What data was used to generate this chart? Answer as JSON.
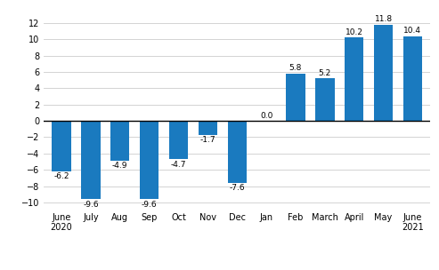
{
  "categories": [
    "June\n2020",
    "July",
    "Aug",
    "Sep",
    "Oct",
    "Nov",
    "Dec",
    "Jan",
    "Feb",
    "March",
    "April",
    "May",
    "June\n2021"
  ],
  "values": [
    -6.2,
    -9.6,
    -4.9,
    -9.6,
    -4.7,
    -1.7,
    -7.6,
    0.0,
    5.8,
    5.2,
    10.2,
    11.8,
    10.4
  ],
  "bar_color": "#1a7abf",
  "ylim": [
    -11,
    13.5
  ],
  "yticks": [
    -10,
    -8,
    -6,
    -4,
    -2,
    0,
    2,
    4,
    6,
    8,
    10,
    12
  ],
  "label_fontsize": 6.5,
  "axis_fontsize": 7.0,
  "source_fontsize": 7.5,
  "bar_width": 0.65
}
